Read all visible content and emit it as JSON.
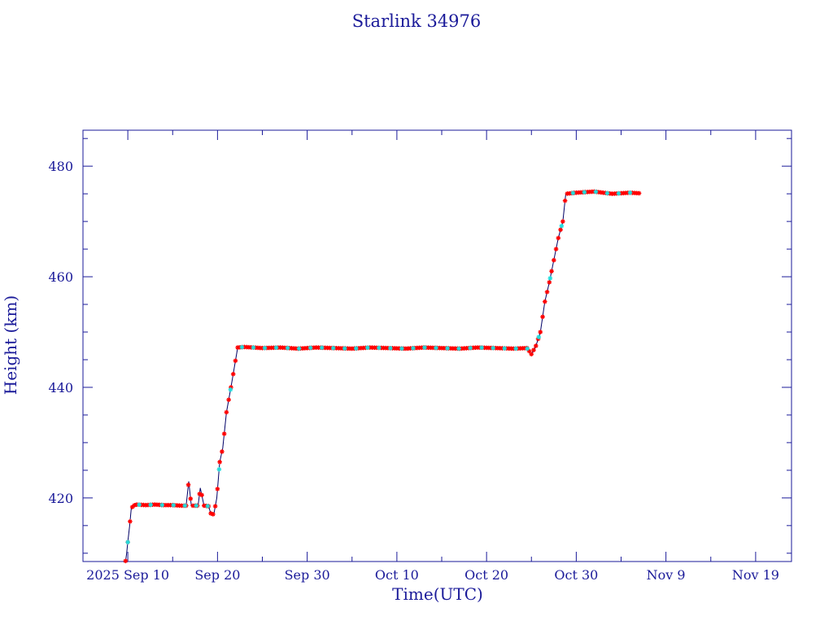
{
  "chart_data": {
    "type": "line",
    "title": "Starlink 34976",
    "xlabel": "Time(UTC)",
    "ylabel": "Height (km)",
    "x_unit": "date",
    "xlim": [
      "2025-09-05",
      "2025-11-23"
    ],
    "ylim": [
      408.5,
      486.5
    ],
    "x_ticks": [
      {
        "date": "2025-09-10",
        "label": "2025 Sep 10"
      },
      {
        "date": "2025-09-20",
        "label": "Sep 20"
      },
      {
        "date": "2025-09-30",
        "label": "Sep 30"
      },
      {
        "date": "2025-10-10",
        "label": "Oct 10"
      },
      {
        "date": "2025-10-20",
        "label": "Oct 20"
      },
      {
        "date": "2025-10-30",
        "label": "Oct 30"
      },
      {
        "date": "2025-11-09",
        "label": "Nov  9"
      },
      {
        "date": "2025-11-19",
        "label": "Nov 19"
      }
    ],
    "y_ticks": [
      420,
      440,
      460,
      480
    ],
    "y_minor_step": 5,
    "x_minor_step_days": 5,
    "grid": false,
    "legend": "none",
    "colors": {
      "axis": "#1a1a99",
      "line": "#000066",
      "marker_primary": "#ff0000",
      "marker_secondary": "#22dddd"
    },
    "series": [
      {
        "style": "line",
        "points": [
          [
            "2025-09-09T18:00",
            408.6
          ],
          [
            "2025-09-09T21:00",
            410
          ],
          [
            "2025-09-10T00:00",
            412
          ],
          [
            "2025-09-10T05:00",
            415
          ],
          [
            "2025-09-10T09:00",
            418
          ],
          [
            "2025-09-10T14:00",
            418.6
          ],
          [
            "2025-09-11T00:00",
            418.8
          ],
          [
            "2025-09-12T00:00",
            418.7
          ],
          [
            "2025-09-13T00:00",
            418.8
          ],
          [
            "2025-09-14T00:00",
            418.7
          ],
          [
            "2025-09-15T00:00",
            418.7
          ],
          [
            "2025-09-16T00:00",
            418.6
          ],
          [
            "2025-09-16T12:00",
            418.6
          ],
          [
            "2025-09-16T19:00",
            423.0
          ],
          [
            "2025-09-17T02:00",
            418.6
          ],
          [
            "2025-09-17T20:00",
            418.6
          ],
          [
            "2025-09-18T02:00",
            421.8
          ],
          [
            "2025-09-18T12:00",
            418.6
          ],
          [
            "2025-09-19T00:00",
            418.5
          ],
          [
            "2025-09-19T06:00",
            417.2
          ],
          [
            "2025-09-19T14:00",
            417.0
          ],
          [
            "2025-09-19T22:00",
            420.0
          ],
          [
            "2025-09-20T06:00",
            426.5
          ],
          [
            "2025-09-20T14:00",
            429.0
          ],
          [
            "2025-09-21T00:00",
            435.5
          ],
          [
            "2025-09-21T12:00",
            440.0
          ],
          [
            "2025-09-22T06:00",
            447.2
          ],
          [
            "2025-09-23T00:00",
            447.3
          ],
          [
            "2025-09-25T00:00",
            447.1
          ],
          [
            "2025-09-27T00:00",
            447.2
          ],
          [
            "2025-09-29T00:00",
            447.0
          ],
          [
            "2025-10-01T00:00",
            447.2
          ],
          [
            "2025-10-03T00:00",
            447.1
          ],
          [
            "2025-10-05T00:00",
            447.0
          ],
          [
            "2025-10-07T00:00",
            447.2
          ],
          [
            "2025-10-09T00:00",
            447.1
          ],
          [
            "2025-10-11T00:00",
            447.0
          ],
          [
            "2025-10-13T00:00",
            447.2
          ],
          [
            "2025-10-15T00:00",
            447.1
          ],
          [
            "2025-10-17T00:00",
            447.0
          ],
          [
            "2025-10-19T00:00",
            447.2
          ],
          [
            "2025-10-21T00:00",
            447.1
          ],
          [
            "2025-10-23T00:00",
            447.0
          ],
          [
            "2025-10-24T12:00",
            447.1
          ],
          [
            "2025-10-25T00:00",
            446.0
          ],
          [
            "2025-10-25T12:00",
            447.5
          ],
          [
            "2025-10-26T00:00",
            450.0
          ],
          [
            "2025-10-26T12:00",
            455.5
          ],
          [
            "2025-10-27T00:00",
            459.0
          ],
          [
            "2025-10-27T12:00",
            463.0
          ],
          [
            "2025-10-28T00:00",
            467.0
          ],
          [
            "2025-10-28T12:00",
            470.0
          ],
          [
            "2025-10-28T20:00",
            475.0
          ],
          [
            "2025-10-30T00:00",
            475.2
          ],
          [
            "2025-11-01T00:00",
            475.4
          ],
          [
            "2025-11-03T00:00",
            475.0
          ],
          [
            "2025-11-05T00:00",
            475.2
          ],
          [
            "2025-11-06T00:00",
            475.1
          ]
        ]
      },
      {
        "style": "markers",
        "color": "#ff0000",
        "x_range": [
          "2025-09-09T18:00",
          "2025-11-06T00:00"
        ],
        "count": 230
      },
      {
        "style": "markers",
        "color": "#22dddd",
        "x_range": [
          "2025-09-10T00:00",
          "2025-11-05T00:00"
        ],
        "count": 45
      }
    ]
  }
}
